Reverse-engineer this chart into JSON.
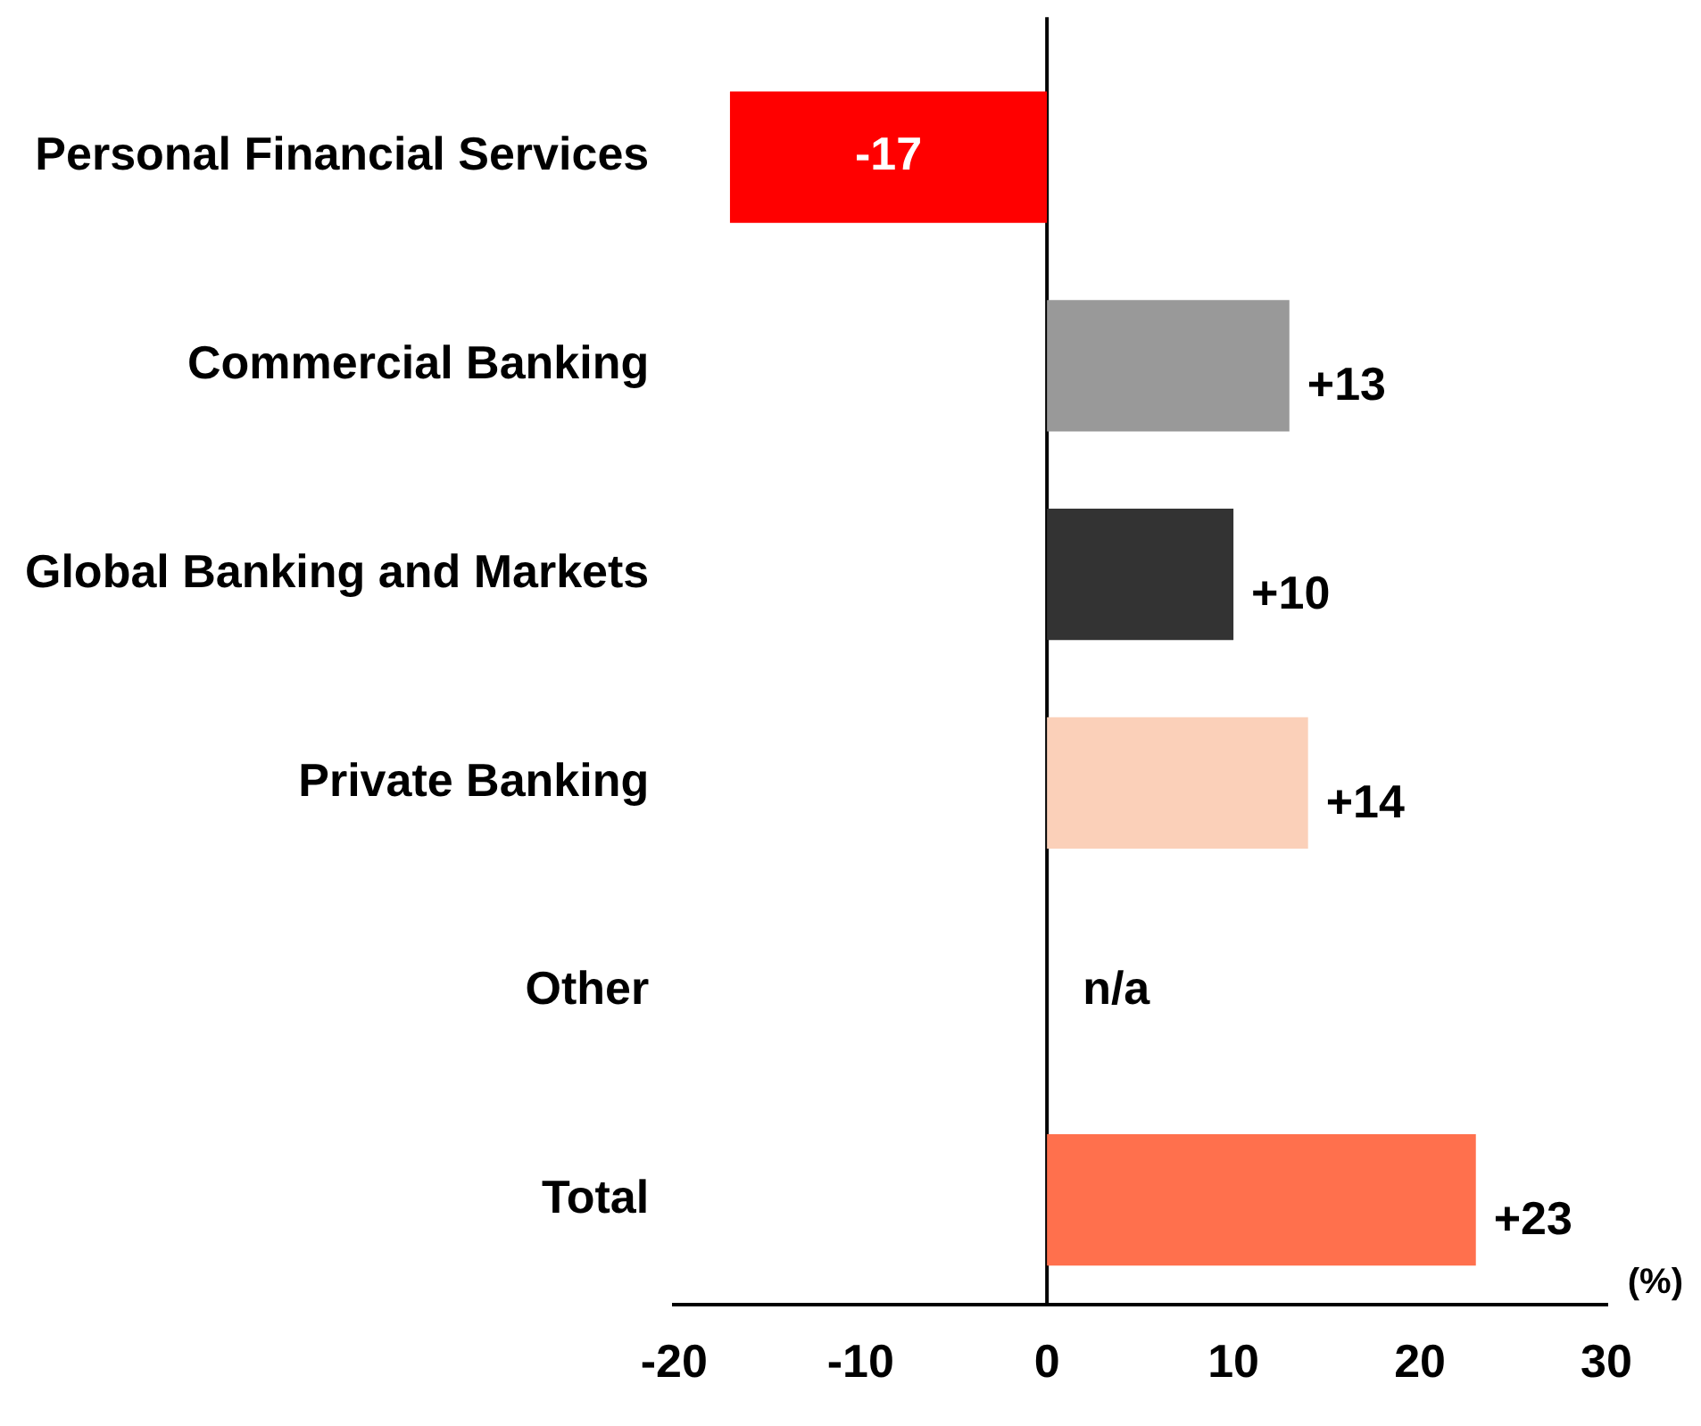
{
  "chart_data": {
    "type": "bar",
    "orientation": "horizontal",
    "xlabel": "(%)",
    "categories": [
      "Personal Financial Services",
      "Commercial Banking",
      "Global Banking and Markets",
      "Private Banking",
      "Other",
      "Total"
    ],
    "values": [
      -17,
      13,
      10,
      14,
      null,
      23
    ],
    "colors": [
      "#ff0000",
      "#999999",
      "#333333",
      "#fbd0b9",
      "#ffffff",
      "#ff704d"
    ],
    "value_labels": [
      "-17",
      "+13",
      "+10",
      "+14",
      "n/a",
      "+23"
    ],
    "xlim": [
      -20,
      30
    ],
    "xticks": [
      -20,
      -10,
      0,
      10,
      20,
      30
    ],
    "ref_lines": [
      {
        "axis": "x",
        "value": 0,
        "color": "#000000"
      }
    ],
    "grid": false,
    "legend": false
  }
}
